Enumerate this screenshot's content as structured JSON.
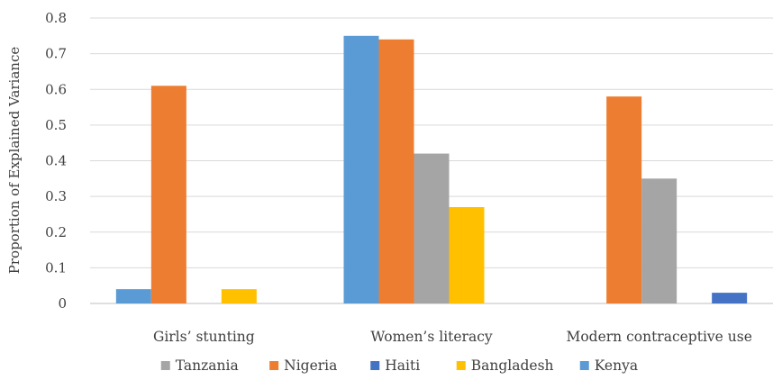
{
  "chart_data": {
    "type": "bar",
    "title": "",
    "xlabel": "",
    "ylabel": "Proportion of Explained Variance",
    "ylim": [
      0,
      0.8
    ],
    "yticks": [
      "0",
      "0.1",
      "0.2",
      "0.3",
      "0.4",
      "0.5",
      "0.6",
      "0.7",
      "0.8"
    ],
    "grid": true,
    "legend_position": "bottom",
    "categories": [
      "Girls’ stunting",
      "Women’s literacy",
      "Modern contraceptive use"
    ],
    "series": [
      {
        "name": "Kenya",
        "color": "#5B9BD5",
        "values": [
          0.04,
          0.75,
          null
        ]
      },
      {
        "name": "Nigeria",
        "color": "#ED7D31",
        "values": [
          0.61,
          0.74,
          0.58
        ]
      },
      {
        "name": "Tanzania",
        "color": "#A5A5A5",
        "values": [
          null,
          0.42,
          0.35
        ]
      },
      {
        "name": "Bangladesh",
        "color": "#FFC000",
        "values": [
          0.04,
          0.27,
          null
        ]
      },
      {
        "name": "Haiti",
        "color": "#4472C4",
        "values": [
          null,
          null,
          0.03
        ]
      }
    ],
    "legend_order": [
      "Tanzania",
      "Nigeria",
      "Haiti",
      "Bangladesh",
      "Kenya"
    ]
  }
}
